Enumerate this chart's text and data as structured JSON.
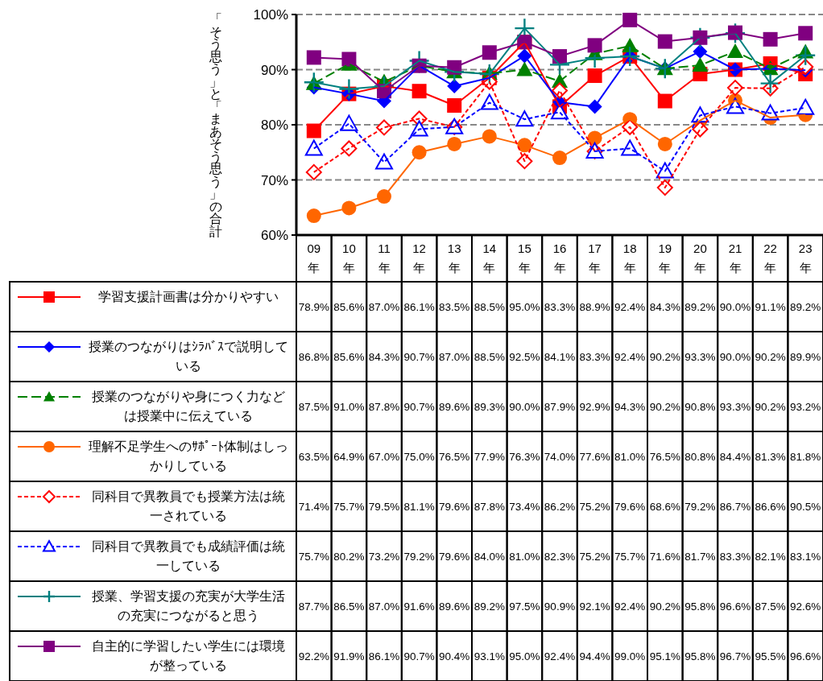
{
  "chart_data": {
    "type": "line",
    "ylabel": "「そう思う」と「まあそう思う」の合計",
    "categories": [
      "09年",
      "10年",
      "11年",
      "12年",
      "13年",
      "14年",
      "15年",
      "16年",
      "17年",
      "18年",
      "19年",
      "20年",
      "21年",
      "22年",
      "23年"
    ],
    "ylim": [
      60,
      100
    ],
    "yticks": [
      {
        "value": 60,
        "label": "60%"
      },
      {
        "value": 70,
        "label": "70%"
      },
      {
        "value": 80,
        "label": "80%"
      },
      {
        "value": 90,
        "label": "90%"
      },
      {
        "value": 100,
        "label": "100%"
      }
    ],
    "grid": "y",
    "legend": "bottom",
    "series": [
      {
        "name": "学習支援計画書は分かりやすい",
        "color": "#ff0000",
        "marker": "square",
        "line_style": "solid",
        "values": [
          78.9,
          85.6,
          87.0,
          86.1,
          83.5,
          88.5,
          95.0,
          83.3,
          88.9,
          92.4,
          84.3,
          89.2,
          90.0,
          91.1,
          89.2
        ],
        "value_labels": [
          "78.9%",
          "85.6%",
          "87.0%",
          "86.1%",
          "83.5%",
          "88.5%",
          "95.0%",
          "83.3%",
          "88.9%",
          "92.4%",
          "84.3%",
          "89.2%",
          "90.0%",
          "91.1%",
          "89.2%"
        ]
      },
      {
        "name": "授業のつながりはｼﾗﾊﾞｽで説明している",
        "color": "#0000ff",
        "marker": "diamond",
        "line_style": "solid",
        "values": [
          86.8,
          85.6,
          84.3,
          90.7,
          87.0,
          88.5,
          92.5,
          84.1,
          83.3,
          92.4,
          90.2,
          93.3,
          90.0,
          90.2,
          89.9
        ],
        "value_labels": [
          "86.8%",
          "85.6%",
          "84.3%",
          "90.7%",
          "87.0%",
          "88.5%",
          "92.5%",
          "84.1%",
          "83.3%",
          "92.4%",
          "90.2%",
          "93.3%",
          "90.0%",
          "90.2%",
          "89.9%"
        ]
      },
      {
        "name": "授業のつながりや身につく力などは授業中に伝えている",
        "color": "#008000",
        "marker": "triangle",
        "line_style": "dashed",
        "values": [
          87.5,
          91.0,
          87.8,
          90.7,
          89.6,
          89.3,
          90.0,
          87.9,
          92.9,
          94.3,
          90.2,
          90.8,
          93.3,
          90.2,
          93.2
        ],
        "value_labels": [
          "87.5%",
          "91.0%",
          "87.8%",
          "90.7%",
          "89.6%",
          "89.3%",
          "90.0%",
          "87.9%",
          "92.9%",
          "94.3%",
          "90.2%",
          "90.8%",
          "93.3%",
          "90.2%",
          "93.2%"
        ]
      },
      {
        "name": "理解不足学生へのｻﾎﾟｰﾄ体制はしっかりしている",
        "color": "#ff6600",
        "marker": "circle",
        "line_style": "solid",
        "values": [
          63.5,
          64.9,
          67.0,
          75.0,
          76.5,
          77.9,
          76.3,
          74.0,
          77.6,
          81.0,
          76.5,
          80.8,
          84.4,
          81.3,
          81.8
        ],
        "value_labels": [
          "63.5%",
          "64.9%",
          "67.0%",
          "75.0%",
          "76.5%",
          "77.9%",
          "76.3%",
          "74.0%",
          "77.6%",
          "81.0%",
          "76.5%",
          "80.8%",
          "84.4%",
          "81.3%",
          "81.8%"
        ]
      },
      {
        "name": "同科目で異教員でも授業方法は統一されている",
        "color": "#ff0000",
        "marker": "diamond",
        "line_style": "dotted",
        "values": [
          71.4,
          75.7,
          79.5,
          81.1,
          79.6,
          87.8,
          73.4,
          86.2,
          75.2,
          79.6,
          68.6,
          79.2,
          86.7,
          86.6,
          90.5
        ],
        "value_labels": [
          "71.4%",
          "75.7%",
          "79.5%",
          "81.1%",
          "79.6%",
          "87.8%",
          "73.4%",
          "86.2%",
          "75.2%",
          "79.6%",
          "68.6%",
          "79.2%",
          "86.7%",
          "86.6%",
          "90.5%"
        ]
      },
      {
        "name": "同科目で異教員でも成績評価は統一している",
        "color": "#0000ff",
        "marker": "triangle",
        "line_style": "dotted",
        "values": [
          75.7,
          80.2,
          73.2,
          79.2,
          79.6,
          84.0,
          81.0,
          82.3,
          75.2,
          75.7,
          71.6,
          81.7,
          83.3,
          82.1,
          83.1
        ],
        "value_labels": [
          "75.7%",
          "80.2%",
          "73.2%",
          "79.2%",
          "79.6%",
          "84.0%",
          "81.0%",
          "82.3%",
          "75.2%",
          "75.7%",
          "71.6%",
          "81.7%",
          "83.3%",
          "82.1%",
          "83.1%"
        ]
      },
      {
        "name": "授業、学習支援の充実が大学生活の充実につながると思う",
        "color": "#008080",
        "marker": "cross",
        "line_style": "solid",
        "values": [
          87.7,
          86.5,
          87.0,
          91.6,
          89.6,
          89.2,
          97.5,
          90.9,
          92.1,
          92.4,
          90.2,
          95.8,
          96.6,
          87.5,
          92.6
        ],
        "value_labels": [
          "87.7%",
          "86.5%",
          "87.0%",
          "91.6%",
          "89.6%",
          "89.2%",
          "97.5%",
          "90.9%",
          "92.1%",
          "92.4%",
          "90.2%",
          "95.8%",
          "96.6%",
          "87.5%",
          "92.6%"
        ]
      },
      {
        "name": "自主的に学習したい学生には環境が整っている",
        "color": "#800080",
        "marker": "square",
        "line_style": "solid",
        "values": [
          92.2,
          91.9,
          86.1,
          90.7,
          90.4,
          93.1,
          95.0,
          92.4,
          94.4,
          99.0,
          95.1,
          95.8,
          96.7,
          95.5,
          96.6
        ],
        "value_labels": [
          "92.2%",
          "91.9%",
          "86.1%",
          "90.7%",
          "90.4%",
          "93.1%",
          "95.0%",
          "92.4%",
          "94.4%",
          "99.0%",
          "95.1%",
          "95.8%",
          "96.7%",
          "95.5%",
          "96.6%"
        ]
      }
    ]
  }
}
